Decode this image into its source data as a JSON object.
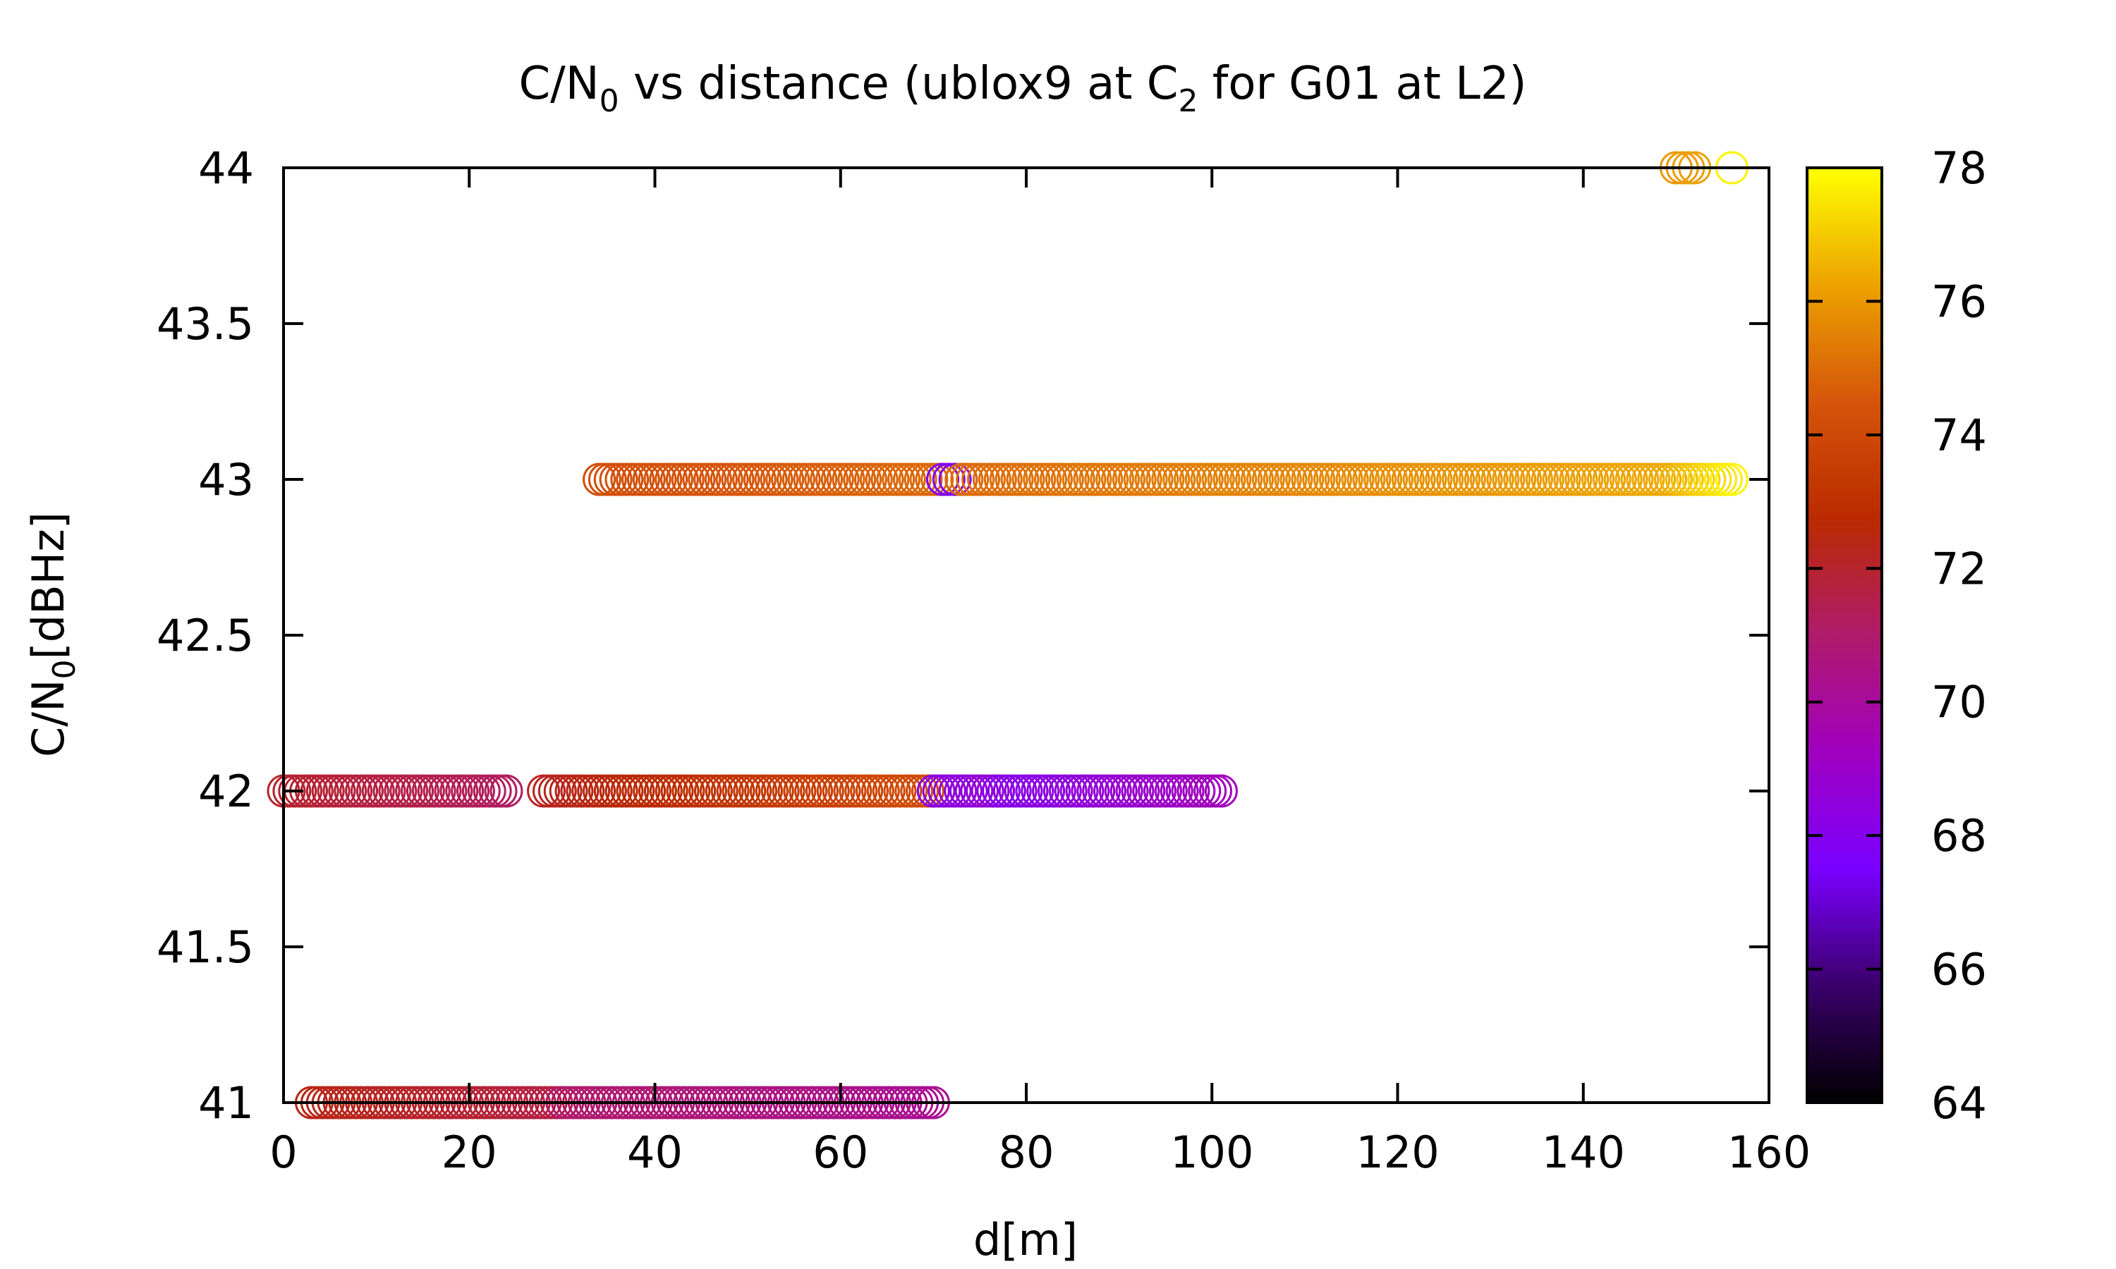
{
  "chart_data": {
    "type": "scatter",
    "title": {
      "main": "C/N",
      "sub": "0",
      "rest1": " vs distance (ublox9 at C",
      "sub2": "2",
      "rest2": " for G01 at L2)"
    },
    "xlabel": "d[m]",
    "ylabel": {
      "main": "C/N",
      "sub": "0",
      "rest": "[dBHz]"
    },
    "xlim": [
      0,
      160
    ],
    "ylim": [
      41,
      44
    ],
    "x_ticks": [
      "0",
      "20",
      "40",
      "60",
      "80",
      "100",
      "120",
      "140",
      "160"
    ],
    "y_ticks": [
      "41",
      "41.5",
      "42",
      "42.5",
      "43",
      "43.5",
      "44"
    ],
    "colorbar": {
      "range": [
        64,
        78
      ],
      "ticks": [
        "64",
        "66",
        "68",
        "70",
        "72",
        "74",
        "76",
        "78"
      ],
      "palette": [
        "#000000",
        "#3a006a",
        "#7a00ff",
        "#a000c0",
        "#b01b6b",
        "#bb2a00",
        "#d6550a",
        "#eca200",
        "#ffff00"
      ]
    },
    "marker": "open-circle",
    "series": [
      {
        "y": 44,
        "segments": [
          {
            "x_start": 150,
            "x_end": 152,
            "c_start": 76.0,
            "c_end": 76.2
          },
          {
            "x_start": 156,
            "x_end": 156,
            "c_start": 77.8,
            "c_end": 77.8
          }
        ]
      },
      {
        "y": 43,
        "segments": [
          {
            "x_start": 34,
            "x_end": 71,
            "c_start": 74.2,
            "c_end": 75.0
          },
          {
            "x_start": 71,
            "x_end": 73,
            "c_start": 67.8,
            "c_end": 67.8
          },
          {
            "x_start": 73,
            "x_end": 150,
            "c_start": 75.0,
            "c_end": 76.4
          },
          {
            "x_start": 150,
            "x_end": 156,
            "c_start": 76.6,
            "c_end": 77.8
          }
        ]
      },
      {
        "y": 42,
        "segments": [
          {
            "x_start": 0,
            "x_end": 24,
            "c_start": 72.0,
            "c_end": 71.2
          },
          {
            "x_start": 28,
            "x_end": 70,
            "c_start": 72.2,
            "c_end": 74.2
          },
          {
            "x_start": 70,
            "x_end": 77,
            "c_start": 68.2,
            "c_end": 68.8
          },
          {
            "x_start": 77,
            "x_end": 101,
            "c_start": 68.0,
            "c_end": 69.4
          }
        ]
      },
      {
        "y": 41,
        "segments": [
          {
            "x_start": 3,
            "x_end": 30,
            "c_start": 72.4,
            "c_end": 71.6
          },
          {
            "x_start": 30,
            "x_end": 70,
            "c_start": 71.0,
            "c_end": 70.2
          }
        ]
      }
    ]
  }
}
